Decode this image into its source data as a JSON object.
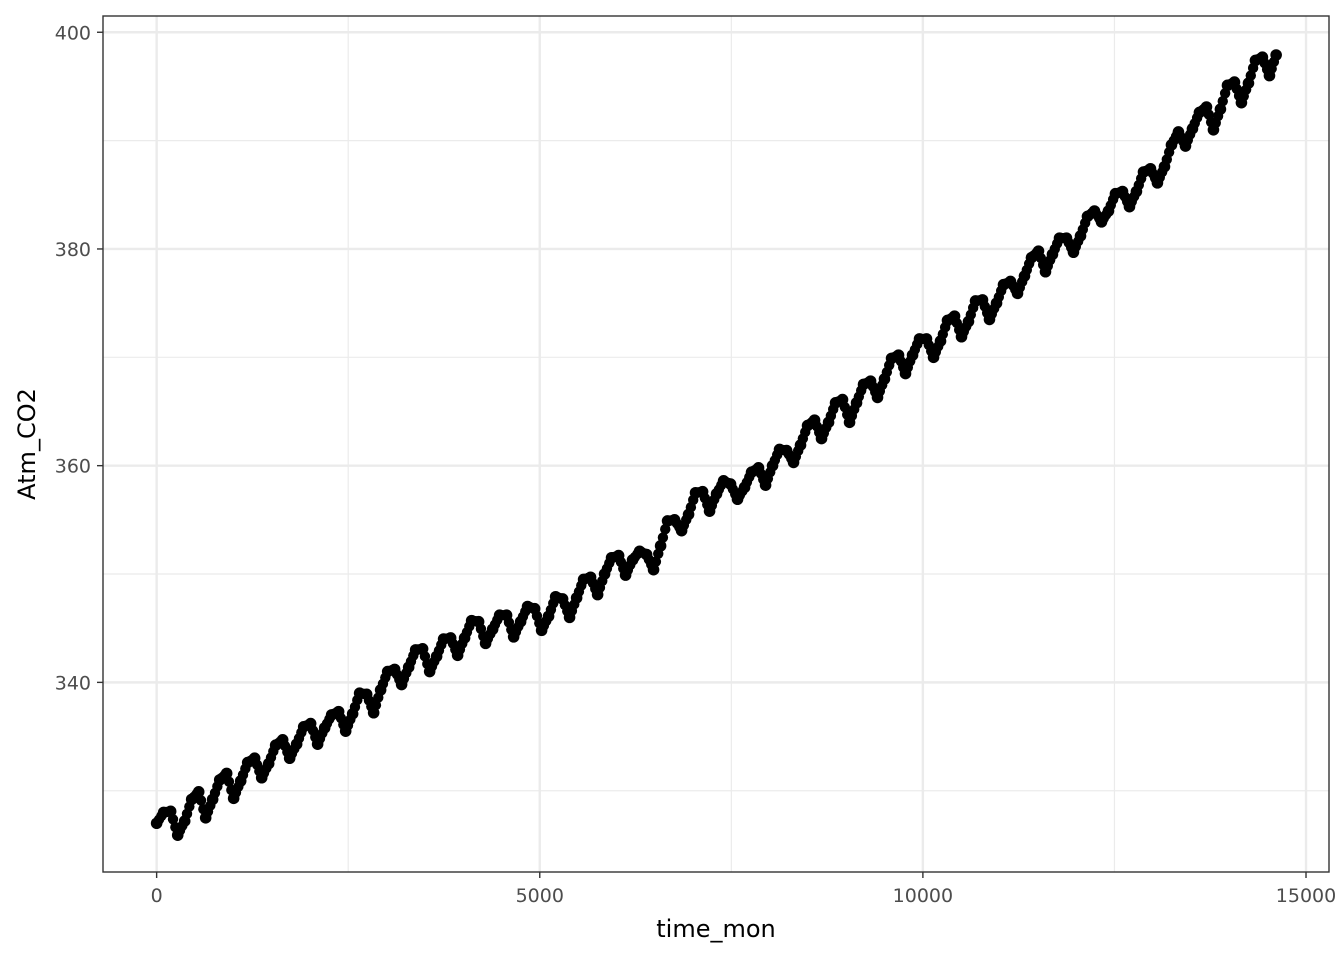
{
  "chart_data": {
    "type": "scatter",
    "xlabel": "time_mon",
    "ylabel": "Atm_CO2",
    "xlim": [
      -700,
      15300
    ],
    "ylim": [
      322.5,
      401.5
    ],
    "x_ticks": [
      {
        "value": 0,
        "label": "0"
      },
      {
        "value": 5000,
        "label": "5000"
      },
      {
        "value": 10000,
        "label": "10000"
      },
      {
        "value": 15000,
        "label": "15000"
      }
    ],
    "y_ticks": [
      {
        "value": 340,
        "label": "340"
      },
      {
        "value": 360,
        "label": "360"
      },
      {
        "value": 380,
        "label": "380"
      },
      {
        "value": 400,
        "label": "400"
      }
    ],
    "grid": true,
    "theme": "bw",
    "point_color": "#000000",
    "sampled_points": {
      "x": [
        0,
        92,
        183,
        275,
        366,
        457,
        549,
        640,
        731,
        823,
        914,
        1005,
        1097,
        1188,
        1279,
        1371,
        1462,
        1553,
        1645,
        1736,
        1827,
        1919,
        2010,
        2101,
        2193,
        2284,
        2375,
        2467,
        2558,
        2649,
        2741,
        2832,
        2923,
        3015,
        3106,
        3197,
        3289,
        3380,
        3471,
        3563,
        3654,
        3745,
        3837,
        3928,
        4019,
        4111,
        4202,
        4293,
        4385,
        4476,
        4567,
        4659,
        4750,
        4841,
        4933,
        5024,
        5115,
        5207,
        5298,
        5389,
        5481,
        5572,
        5663,
        5755,
        5846,
        5937,
        6029,
        6120,
        6211,
        6303,
        6394,
        6485,
        6577,
        6668,
        6759,
        6851,
        6942,
        7033,
        7125,
        7216,
        7307,
        7399,
        7490,
        7581,
        7673,
        7764,
        7855,
        7947,
        8038,
        8129,
        8221,
        8312,
        8403,
        8495,
        8586,
        8677,
        8769,
        8860,
        8951,
        9043,
        9134,
        9225,
        9317,
        9408,
        9499,
        9591,
        9682,
        9773,
        9865,
        9956,
        10047,
        10139,
        10230,
        10321,
        10413,
        10504,
        10595,
        10687,
        10778,
        10869,
        10961,
        11052,
        11143,
        11235,
        11326,
        11417,
        11509,
        11600,
        11691,
        11783,
        11874,
        11965,
        12057,
        12148,
        12239,
        12331,
        12422,
        12513,
        12605,
        12696,
        12787,
        12879,
        12970,
        13061,
        13153,
        13244,
        13335,
        13427,
        13518,
        13609,
        13701,
        13792,
        13883,
        13975,
        14066,
        14157,
        14249,
        14340,
        14431,
        14523,
        14610
      ],
      "y": [
        327.0,
        328.0,
        328.1,
        325.9,
        327.2,
        329.2,
        329.9,
        327.5,
        329.2,
        331.0,
        331.6,
        329.3,
        330.9,
        332.6,
        333.0,
        331.2,
        332.5,
        334.2,
        334.7,
        333.0,
        334.3,
        335.9,
        336.2,
        334.3,
        335.8,
        337.0,
        337.3,
        335.5,
        337.1,
        339.0,
        338.9,
        337.2,
        339.3,
        341.0,
        341.2,
        339.8,
        341.4,
        343.0,
        343.1,
        341.0,
        342.4,
        344.0,
        344.1,
        342.5,
        344.1,
        345.7,
        345.6,
        343.6,
        344.9,
        346.2,
        346.2,
        344.2,
        345.6,
        347.0,
        346.8,
        344.8,
        346.1,
        347.9,
        347.7,
        346.0,
        347.8,
        349.5,
        349.7,
        348.1,
        350.0,
        351.5,
        351.7,
        349.9,
        351.3,
        352.1,
        351.8,
        350.4,
        352.6,
        354.9,
        355.0,
        354.0,
        355.5,
        357.5,
        357.6,
        355.8,
        357.4,
        358.6,
        358.3,
        356.9,
        358.0,
        359.4,
        359.8,
        358.2,
        360.0,
        361.5,
        361.4,
        360.3,
        361.9,
        363.7,
        364.2,
        362.5,
        364.0,
        365.8,
        366.1,
        364.0,
        365.8,
        367.5,
        367.8,
        366.3,
        368.0,
        369.9,
        370.2,
        368.5,
        370.2,
        371.7,
        371.7,
        370.0,
        371.5,
        373.4,
        373.8,
        371.9,
        373.3,
        375.2,
        375.3,
        373.5,
        375.0,
        376.7,
        377.0,
        375.9,
        377.5,
        379.2,
        379.8,
        377.9,
        379.5,
        381.0,
        381.0,
        379.7,
        381.2,
        383.0,
        383.5,
        382.5,
        383.5,
        385.1,
        385.3,
        383.9,
        385.3,
        387.1,
        387.4,
        386.1,
        387.6,
        389.6,
        390.8,
        389.5,
        391.1,
        392.6,
        393.1,
        391.0,
        392.9,
        395.1,
        395.4,
        393.5,
        395.3,
        397.4,
        397.7,
        396.0,
        397.9
      ]
    }
  }
}
